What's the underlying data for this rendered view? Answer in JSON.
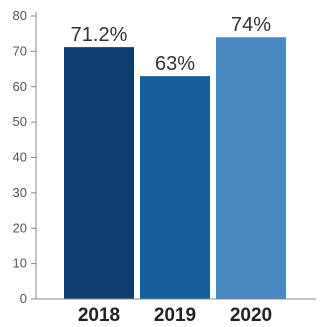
{
  "chart_data": {
    "type": "bar",
    "title": "",
    "xlabel": "",
    "ylabel": "",
    "ylim": [
      0,
      80
    ],
    "yticks": [
      0,
      10,
      20,
      30,
      40,
      50,
      60,
      70,
      80
    ],
    "grid": false,
    "categories": [
      "2018",
      "2019",
      "2020"
    ],
    "values": [
      71.2,
      63,
      74
    ],
    "data_labels": [
      "71.2%",
      "63%",
      "74%"
    ],
    "colors": [
      "#0f3e6e",
      "#175f9a",
      "#4a88c0"
    ]
  }
}
